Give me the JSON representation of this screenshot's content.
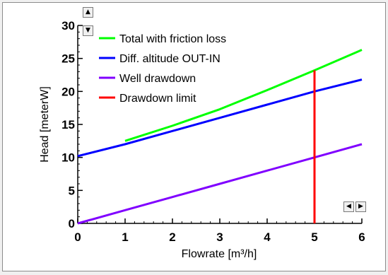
{
  "chart_data": {
    "type": "line",
    "xlabel": "Flowrate [m³/h]",
    "ylabel": "Head [meterW]",
    "xlim": [
      0,
      6
    ],
    "ylim": [
      0,
      30
    ],
    "xticks": [
      "0",
      "1",
      "2",
      "3",
      "4",
      "5",
      "6"
    ],
    "yticks": [
      "0",
      "5",
      "10",
      "15",
      "20",
      "25",
      "30"
    ],
    "grid": false,
    "legend_position": "top-left",
    "series": [
      {
        "name": "Total with friction loss",
        "color": "#00ff00",
        "x": [
          1,
          2,
          3,
          4,
          5,
          6
        ],
        "y": [
          12.5,
          14.8,
          17.3,
          20.2,
          23.2,
          26.3
        ]
      },
      {
        "name": "Diff. altitude OUT-IN",
        "color": "#0000ff",
        "x": [
          0,
          1,
          2,
          3,
          4,
          5,
          6
        ],
        "y": [
          10.2,
          12.0,
          14.0,
          16.0,
          18.0,
          20.0,
          21.8
        ]
      },
      {
        "name": "Well drawdown",
        "color": "#8000ff",
        "x": [
          0,
          1,
          2,
          3,
          4,
          5,
          6
        ],
        "y": [
          0.0,
          2.0,
          4.0,
          6.0,
          8.0,
          10.0,
          12.0
        ]
      },
      {
        "name": "Drawdown limit",
        "color": "#ff0000",
        "x": [
          5,
          5
        ],
        "y": [
          0,
          23.2
        ]
      }
    ]
  },
  "scroll_controls": {
    "up": "▲",
    "down": "▼",
    "left": "◀",
    "right": "▶"
  }
}
